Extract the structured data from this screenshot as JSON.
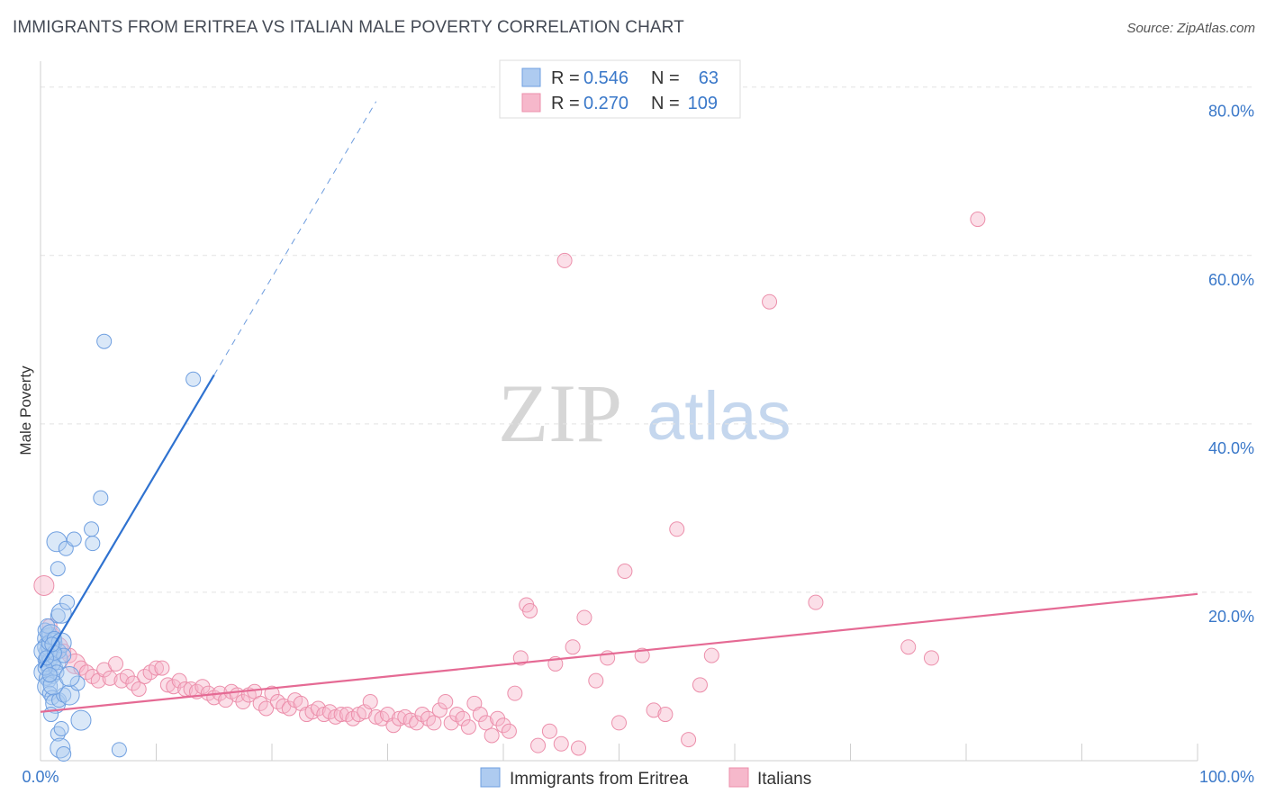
{
  "title": "IMMIGRANTS FROM ERITREA VS ITALIAN MALE POVERTY CORRELATION CHART",
  "source": "Source: ZipAtlas.com",
  "colors": {
    "blue_fill": "#aecbf0",
    "blue_stroke": "#6f9fe0",
    "blue_line": "#2f72d0",
    "pink_fill": "#f6b8cb",
    "pink_stroke": "#ec8fab",
    "pink_line": "#e56a94",
    "value_text": "#3a78c9"
  },
  "watermark": {
    "part1": "ZIP",
    "part2": "atlas"
  },
  "legend": {
    "r_label": "R =",
    "n_label": "N =",
    "rows": [
      {
        "r": "0.546",
        "n": "63"
      },
      {
        "r": "0.270",
        "n": "109"
      }
    ]
  },
  "chart_data": {
    "type": "scatter",
    "xlabel": "",
    "ylabel": "Male Poverty",
    "xlim": [
      0,
      100
    ],
    "ylim": [
      0,
      82
    ],
    "x_tick_labels": [
      "0.0%",
      "100.0%"
    ],
    "y_ticks": [
      20,
      40,
      60,
      80
    ],
    "y_tick_labels": [
      "20.0%",
      "40.0%",
      "60.0%",
      "80.0%"
    ],
    "series": [
      {
        "name": "Immigrants from Eritrea",
        "color": "blue",
        "trend": {
          "x0": 0,
          "y0": 11.0,
          "x1": 15,
          "y1": 45.8,
          "dash_to_x": 29
        },
        "points": [
          [
            0.3,
            10.5
          ],
          [
            0.4,
            12
          ],
          [
            0.5,
            13
          ],
          [
            0.6,
            14.5
          ],
          [
            0.7,
            11
          ],
          [
            0.8,
            15
          ],
          [
            0.9,
            12.5
          ],
          [
            1.0,
            10
          ],
          [
            0.5,
            11.5
          ],
          [
            0.6,
            13.5
          ],
          [
            0.7,
            9.5
          ],
          [
            0.8,
            12
          ],
          [
            1.0,
            14
          ],
          [
            1.2,
            13
          ],
          [
            1.3,
            11
          ],
          [
            1.5,
            12
          ],
          [
            0.4,
            15.5
          ],
          [
            0.6,
            16
          ],
          [
            0.9,
            13.5
          ],
          [
            1.1,
            11.5
          ],
          [
            1.4,
            10.5
          ],
          [
            0.3,
            13
          ],
          [
            0.5,
            9.8
          ],
          [
            0.7,
            14
          ],
          [
            0.9,
            15
          ],
          [
            1.2,
            14.5
          ],
          [
            1.6,
            13
          ],
          [
            1.8,
            14
          ],
          [
            2.0,
            12.5
          ],
          [
            0.4,
            11
          ],
          [
            0.6,
            8.8
          ],
          [
            0.8,
            8
          ],
          [
            1.0,
            7.5
          ],
          [
            1.3,
            6.8
          ],
          [
            1.6,
            7.2
          ],
          [
            2.0,
            7.8
          ],
          [
            2.5,
            7.8
          ],
          [
            1.5,
            3.2
          ],
          [
            1.8,
            3.8
          ],
          [
            1.7,
            1.5
          ],
          [
            2.0,
            0.8
          ],
          [
            0.9,
            5.5
          ],
          [
            3.5,
            4.8
          ],
          [
            3.2,
            9.2
          ],
          [
            1.5,
            17.2
          ],
          [
            1.8,
            17.5
          ],
          [
            2.3,
            18.8
          ],
          [
            1.5,
            22.8
          ],
          [
            1.4,
            26
          ],
          [
            2.2,
            25.2
          ],
          [
            2.9,
            26.3
          ],
          [
            4.4,
            27.5
          ],
          [
            4.5,
            25.8
          ],
          [
            5.2,
            31.2
          ],
          [
            5.5,
            49.8
          ],
          [
            13.2,
            45.3
          ],
          [
            6.8,
            1.3
          ],
          [
            1.1,
            9
          ],
          [
            0.8,
            10.2
          ],
          [
            1.2,
            12.8
          ],
          [
            2.5,
            10
          ],
          [
            0.5,
            12.2
          ],
          [
            1.0,
            13.8
          ]
        ]
      },
      {
        "name": "Italians",
        "color": "pink",
        "trend": {
          "x0": 0,
          "y0": 5.8,
          "x1": 100,
          "y1": 19.8
        },
        "points": [
          [
            0.3,
            20.8
          ],
          [
            0.8,
            16
          ],
          [
            1.0,
            15
          ],
          [
            1.5,
            13.5
          ],
          [
            2.0,
            13
          ],
          [
            2.5,
            12.5
          ],
          [
            3.0,
            11.5
          ],
          [
            3.5,
            11
          ],
          [
            4.0,
            10.5
          ],
          [
            4.5,
            10
          ],
          [
            5.0,
            9.5
          ],
          [
            5.5,
            10.8
          ],
          [
            6.0,
            9.8
          ],
          [
            6.5,
            11.5
          ],
          [
            7.0,
            9.5
          ],
          [
            7.5,
            10
          ],
          [
            8.0,
            9.2
          ],
          [
            8.5,
            8.5
          ],
          [
            9.0,
            10
          ],
          [
            9.5,
            10.5
          ],
          [
            10,
            11
          ],
          [
            10.5,
            11
          ],
          [
            11,
            9
          ],
          [
            11.5,
            8.8
          ],
          [
            12,
            9.5
          ],
          [
            12.5,
            8.5
          ],
          [
            13,
            8.5
          ],
          [
            13.5,
            8.2
          ],
          [
            14,
            8.8
          ],
          [
            14.5,
            8
          ],
          [
            15,
            7.5
          ],
          [
            15.5,
            8
          ],
          [
            16,
            7.2
          ],
          [
            16.5,
            8.2
          ],
          [
            17,
            7.8
          ],
          [
            17.5,
            7
          ],
          [
            18,
            7.8
          ],
          [
            18.5,
            8.2
          ],
          [
            19,
            6.8
          ],
          [
            19.5,
            6.2
          ],
          [
            20,
            8
          ],
          [
            20.5,
            7
          ],
          [
            21,
            6.5
          ],
          [
            21.5,
            6.2
          ],
          [
            22,
            7.2
          ],
          [
            22.5,
            6.8
          ],
          [
            23,
            5.5
          ],
          [
            23.5,
            5.8
          ],
          [
            24,
            6.2
          ],
          [
            24.5,
            5.5
          ],
          [
            25,
            5.8
          ],
          [
            25.5,
            5.2
          ],
          [
            26,
            5.5
          ],
          [
            26.5,
            5.5
          ],
          [
            27,
            5
          ],
          [
            27.5,
            5.5
          ],
          [
            28,
            5.8
          ],
          [
            28.5,
            7
          ],
          [
            29,
            5.2
          ],
          [
            29.5,
            5
          ],
          [
            30,
            5.5
          ],
          [
            30.5,
            4.2
          ],
          [
            31,
            5
          ],
          [
            31.5,
            5.2
          ],
          [
            32,
            4.8
          ],
          [
            32.5,
            4.5
          ],
          [
            33,
            5.5
          ],
          [
            33.5,
            5
          ],
          [
            34,
            4.5
          ],
          [
            34.5,
            6
          ],
          [
            35,
            7
          ],
          [
            35.5,
            4.5
          ],
          [
            36,
            5.5
          ],
          [
            36.5,
            5
          ],
          [
            37,
            4
          ],
          [
            37.5,
            6.8
          ],
          [
            38,
            5.5
          ],
          [
            38.5,
            4.5
          ],
          [
            39,
            3
          ],
          [
            39.5,
            5
          ],
          [
            40,
            4.2
          ],
          [
            40.5,
            3.5
          ],
          [
            41,
            8
          ],
          [
            41.5,
            12.2
          ],
          [
            42,
            18.5
          ],
          [
            42.3,
            17.8
          ],
          [
            43,
            1.8
          ],
          [
            44,
            3.5
          ],
          [
            44.5,
            11.5
          ],
          [
            45,
            2
          ],
          [
            46,
            13.5
          ],
          [
            46.5,
            1.5
          ],
          [
            47,
            17
          ],
          [
            48,
            9.5
          ],
          [
            49,
            12.2
          ],
          [
            50,
            4.5
          ],
          [
            50.5,
            22.5
          ],
          [
            52,
            12.5
          ],
          [
            53,
            6
          ],
          [
            54,
            5.5
          ],
          [
            55,
            27.5
          ],
          [
            56,
            2.5
          ],
          [
            57,
            9
          ],
          [
            58,
            12.5
          ],
          [
            63,
            54.5
          ],
          [
            67,
            18.8
          ],
          [
            75,
            13.5
          ],
          [
            77,
            12.2
          ],
          [
            81,
            64.3
          ],
          [
            45.3,
            59.4
          ]
        ]
      }
    ]
  },
  "bottom_legend": [
    {
      "label": "Immigrants from Eritrea",
      "color": "blue"
    },
    {
      "label": "Italians",
      "color": "pink"
    }
  ]
}
